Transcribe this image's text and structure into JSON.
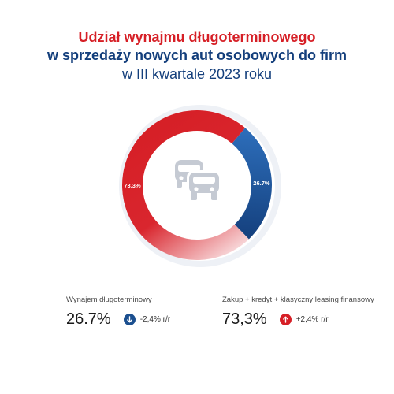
{
  "title": {
    "line1": "Udział wynajmu długoterminowego",
    "line2": "w sprzedaży nowych aut osobowych do firm",
    "line3": "w III kwartale 2023 roku"
  },
  "colors": {
    "red": "#d61f26",
    "blue": "#1b4f8f",
    "title_blue": "#143f7c",
    "icon_gray": "#c5cad3"
  },
  "chart_data": {
    "type": "pie",
    "variant": "donut",
    "center_icon": "cars-icon",
    "slices": [
      {
        "label": "Wynajem długoterminowy",
        "value": 26.7,
        "data_label": "26.7%",
        "color": "#1b4f8f"
      },
      {
        "label": "Zakup + kredyt + klasyczny leasing finansowy",
        "value": 73.3,
        "data_label": "73.3%",
        "color": "#d61f26"
      }
    ]
  },
  "stats": [
    {
      "label": "Wynajem długoterminowy",
      "value": "26.7%",
      "direction": "down",
      "change": "-2,4% r/r",
      "badge_color": "#1b4f8f"
    },
    {
      "label": "Zakup + kredyt + klasyczny leasing finansowy",
      "value": "73,3%",
      "direction": "up",
      "change": "+2,4% r/r",
      "badge_color": "#d61f26"
    }
  ]
}
